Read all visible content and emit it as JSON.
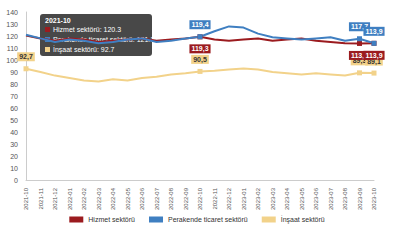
{
  "chart_data": {
    "type": "line",
    "categories": [
      "2021-10",
      "2021-11",
      "2021-12",
      "2022-01",
      "2022-02",
      "2022-03",
      "2022-04",
      "2022-05",
      "2022-06",
      "2022-07",
      "2022-08",
      "2022-09",
      "2022-10",
      "2022-11",
      "2022-12",
      "2023-01",
      "2023-02",
      "2023-03",
      "2023-04",
      "2023-05",
      "2023-06",
      "2023-07",
      "2023-08",
      "2023-09",
      "2023-10"
    ],
    "series": [
      {
        "name": "Hizmet sektörü",
        "color": "#9b1b1f",
        "values": [
          120.3,
          118,
          116,
          118,
          117,
          115,
          116,
          117,
          118,
          116,
          117,
          118,
          119.3,
          117,
          116,
          117,
          118,
          116,
          117,
          118,
          116,
          115,
          114,
          113.8,
          113.9
        ],
        "value_labels": [
          null,
          null,
          null,
          null,
          null,
          null,
          null,
          null,
          null,
          null,
          null,
          null,
          "119,3",
          null,
          null,
          null,
          null,
          null,
          null,
          null,
          null,
          null,
          null,
          "113,8",
          "113,9"
        ]
      },
      {
        "name": "Perakende ticaret sektörü",
        "color": "#3f7fc1",
        "values": [
          121.1,
          118,
          115,
          117,
          116,
          114,
          115,
          117,
          118,
          115,
          116,
          118,
          119.4,
          124,
          128,
          127,
          122,
          119,
          118,
          117,
          118,
          119,
          116,
          117.7,
          113.9
        ],
        "value_labels": [
          null,
          null,
          null,
          null,
          null,
          null,
          null,
          null,
          null,
          null,
          null,
          null,
          "119,4",
          null,
          null,
          null,
          null,
          null,
          null,
          null,
          null,
          null,
          null,
          "117,7",
          "113,9"
        ]
      },
      {
        "name": "İnşaat sektörü",
        "color": "#f2d28a",
        "values": [
          92.7,
          90,
          87,
          85,
          83,
          82,
          84,
          83,
          85,
          86,
          88,
          89,
          90.5,
          91,
          92,
          93,
          92,
          90,
          89,
          88,
          89,
          88,
          87,
          89.3,
          89.1
        ],
        "value_labels": [
          "92,7",
          null,
          null,
          null,
          null,
          null,
          null,
          null,
          null,
          null,
          null,
          null,
          "90,5",
          null,
          null,
          null,
          null,
          null,
          null,
          null,
          null,
          null,
          null,
          "89,3",
          "89,1"
        ]
      }
    ],
    "ylim": [
      0,
      140
    ],
    "yticks": [
      0,
      10,
      20,
      30,
      40,
      50,
      60,
      70,
      80,
      90,
      100,
      110,
      120,
      130,
      140
    ],
    "grid": false,
    "legend": "bottom",
    "data_labels": true,
    "tooltip": {
      "title": "2021-10",
      "lines": [
        "Hizmet sektörü: 120.3",
        "Perakende ticaret sektörü: 121.1",
        "İnşaat sektörü: 92.7"
      ]
    }
  }
}
